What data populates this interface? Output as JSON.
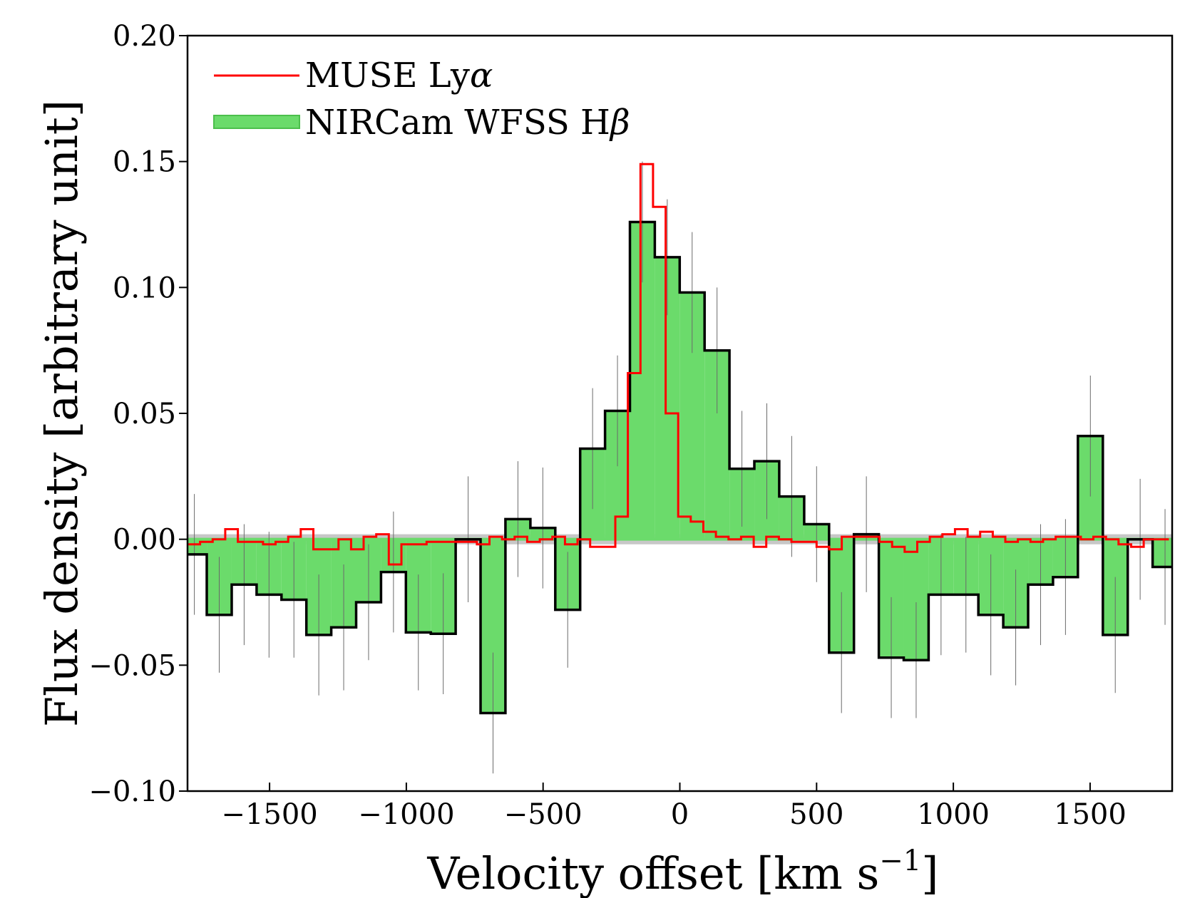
{
  "chart_data": {
    "type": "line",
    "title": "",
    "xlabel": "Velocity offset [km s",
    "xlabel_superscript": "−1",
    "xlabel_close": "]",
    "ylabel": "Flux density [arbitrary unit]",
    "xlim": [
      -1800,
      1800
    ],
    "ylim": [
      -0.1,
      0.2
    ],
    "xticks": [
      -1500,
      -1000,
      -500,
      0,
      500,
      1000,
      1500
    ],
    "xtick_labels": [
      "−1500",
      "−1000",
      "−500",
      "0",
      "500",
      "1000",
      "1500"
    ],
    "yticks": [
      -0.1,
      -0.05,
      0.0,
      0.05,
      0.1,
      0.15,
      0.2
    ],
    "ytick_labels": [
      "−0.10",
      "−0.05",
      "0.00",
      "0.05",
      "0.10",
      "0.15",
      "0.20"
    ],
    "legend_position": "top-left",
    "zero_band": {
      "y": 0.0,
      "half_width": 0.002,
      "color": "#999999"
    },
    "series": [
      {
        "name": "NIRCam WFSS Hβ",
        "legend_label": "NIRCam WFSS H",
        "legend_symbol": "β",
        "style": "filled-step",
        "fill": "#6bdb6b",
        "edge": "#000000",
        "bin_width": 91,
        "x": [
          -1775,
          -1684,
          -1593,
          -1502,
          -1411,
          -1320,
          -1229,
          -1138,
          -1047,
          -956,
          -865,
          -774,
          -683,
          -592,
          -501,
          -410,
          -319,
          -228,
          -137,
          -46,
          45,
          136,
          227,
          318,
          409,
          500,
          591,
          682,
          773,
          864,
          955,
          1046,
          1137,
          1228,
          1319,
          1410,
          1501,
          1592,
          1683,
          1774
        ],
        "y": [
          -0.006,
          -0.03,
          -0.018,
          -0.022,
          -0.024,
          -0.038,
          -0.035,
          -0.025,
          -0.013,
          -0.037,
          -0.0375,
          0.0,
          -0.069,
          0.008,
          0.0045,
          -0.028,
          0.036,
          0.051,
          0.126,
          0.112,
          0.098,
          0.075,
          0.028,
          0.031,
          0.017,
          0.006,
          -0.045,
          0.002,
          -0.047,
          -0.048,
          -0.022,
          -0.022,
          -0.03,
          -0.035,
          -0.018,
          -0.015,
          0.041,
          -0.038,
          0.0,
          -0.011
        ],
        "yerr": [
          0.024,
          0.023,
          0.024,
          0.025,
          0.023,
          0.024,
          0.025,
          0.023,
          0.024,
          0.023,
          0.024,
          0.025,
          0.024,
          0.023,
          0.024,
          0.023,
          0.024,
          0.022,
          0.024,
          0.023,
          0.024,
          0.025,
          0.023,
          0.023,
          0.024,
          0.023,
          0.024,
          0.023,
          0.024,
          0.023,
          0.024,
          0.023,
          0.024,
          0.023,
          0.024,
          0.023,
          0.024,
          0.023,
          0.024,
          0.023
        ]
      },
      {
        "name": "MUSE Lyα",
        "legend_label": "MUSE Ly",
        "legend_symbol": "α",
        "style": "step",
        "color": "#ff0000",
        "bin_width": 46,
        "x": [
          -1777,
          -1731,
          -1685,
          -1639,
          -1593,
          -1547,
          -1501,
          -1455,
          -1409,
          -1363,
          -1317,
          -1271,
          -1225,
          -1179,
          -1133,
          -1087,
          -1041,
          -995,
          -949,
          -903,
          -857,
          -811,
          -765,
          -719,
          -673,
          -627,
          -581,
          -535,
          -489,
          -443,
          -397,
          -351,
          -305,
          -259,
          -213,
          -167,
          -121,
          -75,
          -29,
          17,
          63,
          109,
          155,
          201,
          247,
          293,
          339,
          385,
          431,
          477,
          523,
          569,
          615,
          661,
          707,
          753,
          799,
          845,
          891,
          937,
          983,
          1029,
          1075,
          1121,
          1167,
          1213,
          1259,
          1305,
          1351,
          1397,
          1443,
          1489,
          1535,
          1581,
          1627,
          1673,
          1719,
          1765
        ],
        "y": [
          -0.002,
          -0.001,
          0.0,
          0.004,
          -0.001,
          -0.001,
          -0.002,
          -0.001,
          0.001,
          0.004,
          -0.004,
          -0.004,
          0.0,
          -0.004,
          0.001,
          0.002,
          -0.01,
          -0.002,
          -0.002,
          -0.001,
          -0.001,
          -0.001,
          -0.001,
          -0.002,
          0.001,
          0.0,
          0.001,
          -0.001,
          0.0,
          0.001,
          -0.002,
          0.0,
          -0.003,
          -0.003,
          0.009,
          0.066,
          0.149,
          0.132,
          0.05,
          0.009,
          0.007,
          0.003,
          0.001,
          0.0,
          0.001,
          -0.003,
          0.001,
          0.0,
          -0.001,
          -0.001,
          -0.003,
          -0.004,
          0.001,
          0.001,
          0.001,
          -0.001,
          -0.003,
          -0.005,
          -0.001,
          0.001,
          0.002,
          0.004,
          0.001,
          0.003,
          0.001,
          -0.001,
          0.0,
          -0.001,
          0.0,
          0.001,
          0.001,
          0.0,
          0.001,
          0.0,
          -0.002,
          -0.003,
          0.0,
          0.0
        ]
      }
    ]
  }
}
